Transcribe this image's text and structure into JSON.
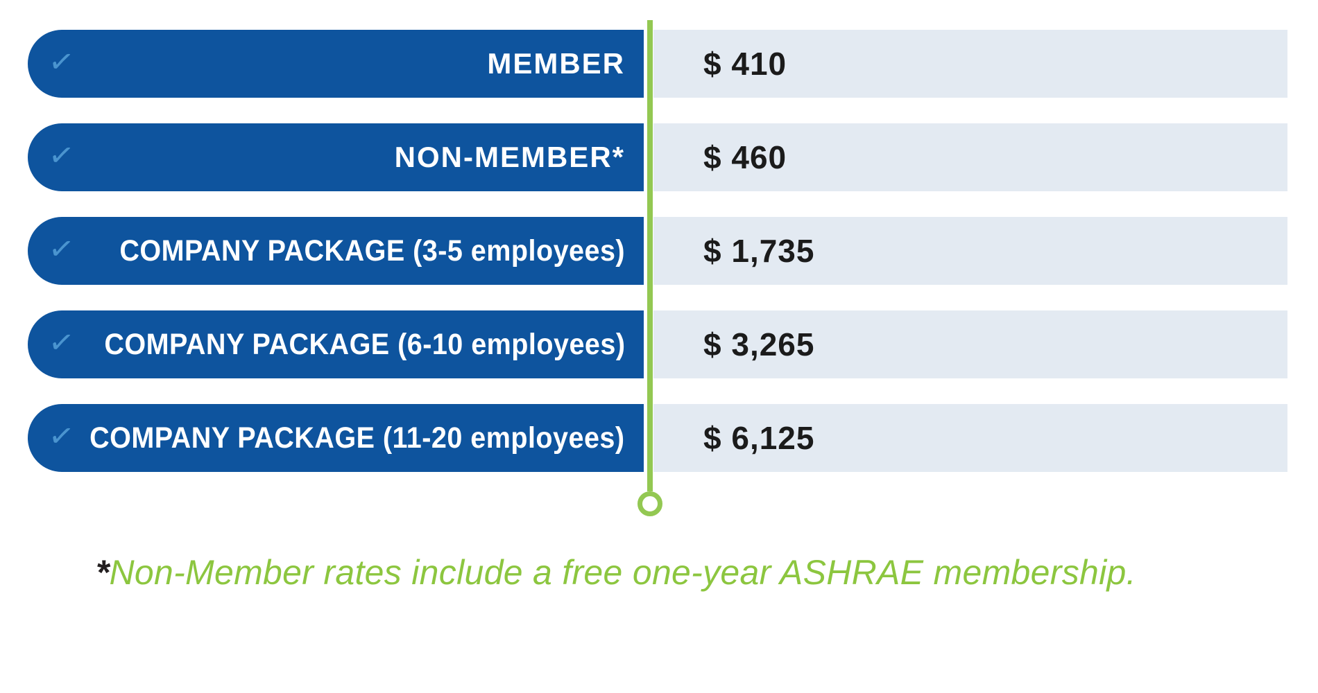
{
  "pricing_table": {
    "check_icon": "✓",
    "rows": [
      {
        "label": "MEMBER",
        "price": "$ 410"
      },
      {
        "label": "NON-MEMBER*",
        "price": "$ 460"
      },
      {
        "label": "COMPANY PACKAGE (3-5 employees)",
        "price": "$ 1,735"
      },
      {
        "label": "COMPANY PACKAGE (6-10 employees)",
        "price": "$ 3,265"
      },
      {
        "label": "COMPANY PACKAGE (11-20 employees)",
        "price": "$ 6,125"
      }
    ]
  },
  "footnote": {
    "asterisk": "*",
    "text": "Non-Member rates include a free one-year ASHRAE membership."
  },
  "colors": {
    "pill_blue": "#0e549e",
    "row_light_blue": "#e3eaf2",
    "accent_green": "#93c852",
    "footnote_green": "#8cc63f",
    "check_blue": "#4a94cf",
    "price_text": "#1b1b1b"
  },
  "chart_data": {
    "type": "table",
    "rows": [
      [
        "MEMBER",
        "$ 410"
      ],
      [
        "NON-MEMBER*",
        "$ 460"
      ],
      [
        "COMPANY PACKAGE (3-5 employees)",
        "$ 1,735"
      ],
      [
        "COMPANY PACKAGE (6-10 employees)",
        "$ 3,265"
      ],
      [
        "COMPANY PACKAGE (11-20 employees)",
        "$ 6,125"
      ]
    ],
    "values": [
      410,
      460,
      1735,
      3265,
      6125
    ],
    "footnote": "*Non-Member rates include a free one-year ASHRAE membership."
  }
}
